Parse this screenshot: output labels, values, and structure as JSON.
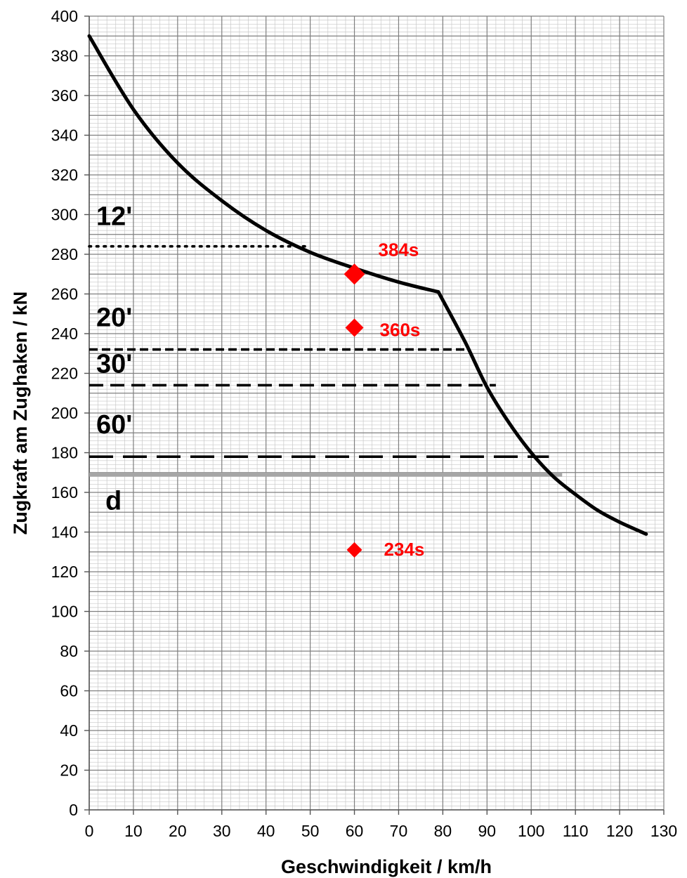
{
  "chart_data": {
    "type": "line",
    "xlabel": "Geschwindigkeit / km/h",
    "ylabel": "Zugkraft am Zughaken / kN",
    "xlim": [
      0,
      130
    ],
    "ylim": [
      0,
      400
    ],
    "x_ticks": [
      "0",
      "10",
      "20",
      "30",
      "40",
      "50",
      "60",
      "70",
      "80",
      "90",
      "100",
      "110",
      "120",
      "130"
    ],
    "y_ticks": [
      "0",
      "20",
      "40",
      "60",
      "80",
      "100",
      "120",
      "140",
      "160",
      "180",
      "200",
      "220",
      "240",
      "260",
      "280",
      "300",
      "320",
      "340",
      "360",
      "380",
      "400"
    ],
    "grid": true,
    "curve": {
      "color": "#000000",
      "x": [
        0,
        10,
        20,
        30,
        40,
        50,
        60,
        70,
        79,
        85,
        90,
        95,
        100,
        105,
        110,
        115,
        120,
        126
      ],
      "y": [
        390,
        353,
        326,
        307,
        292,
        281,
        273,
        266,
        261,
        236,
        213,
        195,
        180,
        168,
        159,
        151,
        145,
        139
      ]
    },
    "hlines": [
      {
        "label": "12'",
        "y": 284,
        "x": [
          0,
          50
        ],
        "style": "dotted",
        "color": "#000000"
      },
      {
        "label": "20'",
        "y": 232,
        "x": [
          0,
          86
        ],
        "style": "short-dash",
        "color": "#000000"
      },
      {
        "label": "30'",
        "y": 214,
        "x": [
          0,
          92
        ],
        "style": "dash",
        "color": "#000000"
      },
      {
        "label": "60'",
        "y": 178,
        "x": [
          0,
          104
        ],
        "style": "long-dash",
        "color": "#000000"
      },
      {
        "label": "d",
        "y": 169,
        "x": [
          0,
          107
        ],
        "style": "solid",
        "color": "#a6a6a6"
      }
    ],
    "points": [
      {
        "label": "384s",
        "x": 60,
        "y": 270,
        "size": "large",
        "color": "#ff0000"
      },
      {
        "label": "360s",
        "x": 60,
        "y": 243,
        "size": "medium",
        "color": "#ff0000"
      },
      {
        "label": "234s",
        "x": 60,
        "y": 131,
        "size": "small",
        "color": "#ff0000"
      }
    ]
  }
}
